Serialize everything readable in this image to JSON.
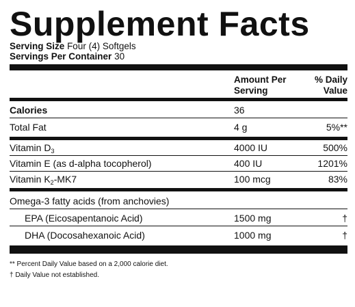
{
  "title": "Supplement Facts",
  "serving_size": {
    "label": "Serving Size",
    "value": "Four (4) Softgels"
  },
  "servings_per_container": {
    "label": "Servings Per Container",
    "value": "30"
  },
  "header": {
    "amount_line1": "Amount Per",
    "amount_line2": "Serving",
    "dv_line1": "% Daily",
    "dv_line2": "Value"
  },
  "rows": [
    {
      "name": "Calories",
      "amount": "36",
      "dv": ""
    },
    {
      "name": "Total Fat",
      "amount": "4 g",
      "dv": "5%**"
    },
    {
      "name_main": "Vitamin D",
      "name_sub": "3",
      "name_rest": "",
      "amount": "4000 IU",
      "dv": "500%"
    },
    {
      "name": "Vitamin E (as d-alpha tocopherol)",
      "amount": "400 IU",
      "dv": "1201%"
    },
    {
      "name_main": "Vitamin K",
      "name_sub": "2",
      "name_rest": "-MK7",
      "amount": "100 mcg",
      "dv": "83%"
    },
    {
      "name": "Omega-3 fatty acids (from anchovies)",
      "amount": "",
      "dv": ""
    },
    {
      "name": "EPA (Eicosapentanoic Acid)",
      "amount": "1500 mg",
      "dv": "†"
    },
    {
      "name": "DHA (Docosahexanoic Acid)",
      "amount": "1000 mg",
      "dv": "†"
    }
  ],
  "footnotes": [
    "** Percent Daily Value based on a 2,000 calorie diet.",
    "† Daily Value not established."
  ]
}
